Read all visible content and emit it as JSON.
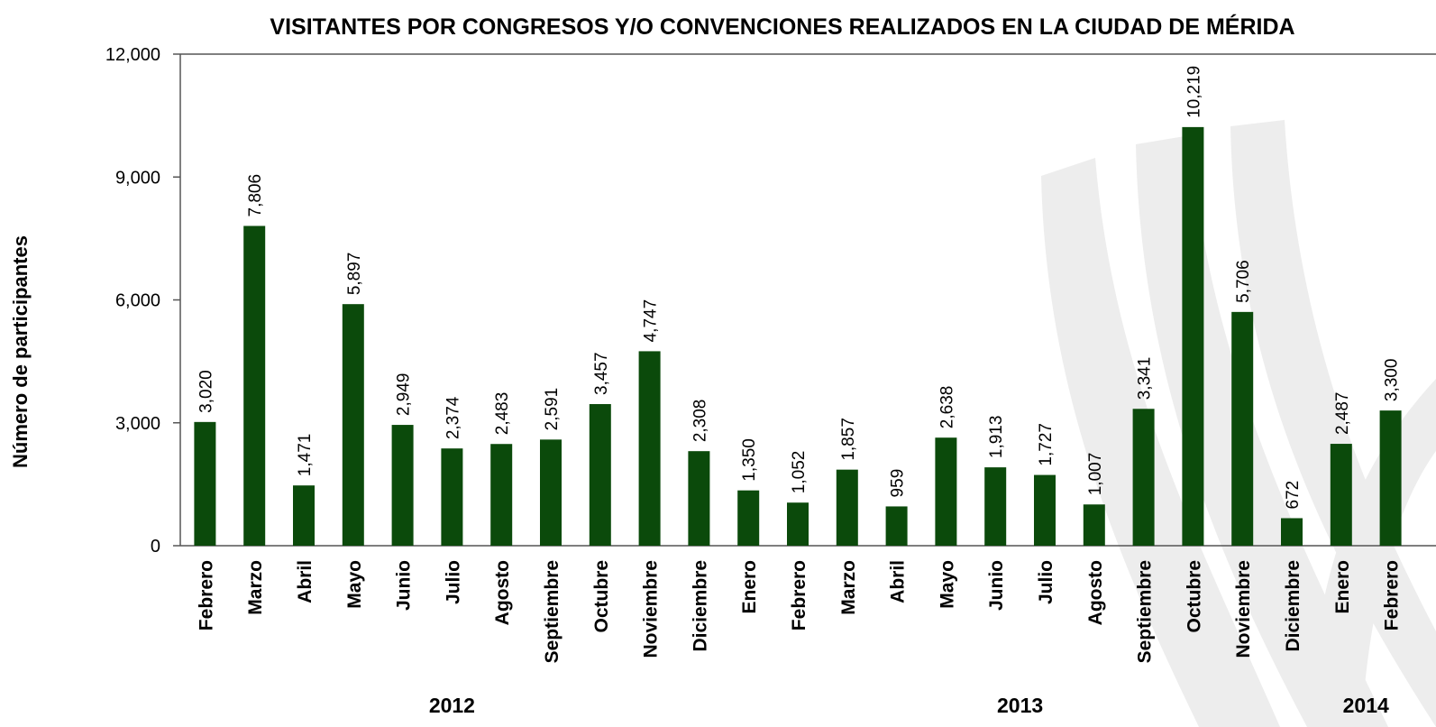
{
  "chart_data": {
    "type": "bar",
    "title": "VISITANTES POR CONGRESOS Y/O CONVENCIONES REALIZADOS EN LA CIUDAD DE MÉRIDA",
    "y_label": "Número de participantes",
    "color": "#0b4a0b",
    "ylim": [
      0,
      12000
    ],
    "yticks": [
      0,
      {
        "value": 3000,
        "label": "3,000"
      },
      {
        "value": 6000,
        "label": "6,000"
      },
      {
        "value": 9000,
        "label": "9,000"
      },
      {
        "value": 12000,
        "label": "12,000"
      }
    ],
    "groups": [
      {
        "label": "2012",
        "categories": [
          "Febrero",
          "Marzo",
          "Abril",
          "Mayo",
          "Junio",
          "Julio",
          "Agosto",
          "Septiembre",
          "Octubre",
          "Noviembre",
          "Diciembre"
        ],
        "values": [
          3020,
          7806,
          1471,
          5897,
          2949,
          2374,
          2483,
          2591,
          3457,
          4747,
          2308
        ],
        "value_labels": [
          "3,020",
          "7,806",
          "1,471",
          "5,897",
          "2,949",
          "2,374",
          "2,483",
          "2,591",
          "3,457",
          "4,747",
          "2,308"
        ]
      },
      {
        "label": "2013",
        "categories": [
          "Enero",
          "Febrero",
          "Marzo",
          "Abril",
          "Mayo",
          "Junio",
          "Julio",
          "Agosto",
          "Septiembre",
          "Octubre",
          "Noviembre",
          "Diciembre"
        ],
        "values": [
          1350,
          1052,
          1857,
          959,
          2638,
          1913,
          1727,
          1007,
          3341,
          10219,
          5706,
          672
        ],
        "value_labels": [
          "1,350",
          "1,052",
          "1,857",
          "959",
          "2,638",
          "1,913",
          "1,727",
          "1,007",
          "3,341",
          "10,219",
          "5,706",
          "672"
        ]
      },
      {
        "label": "2014",
        "categories": [
          "Enero",
          "Febrero"
        ],
        "values": [
          2487,
          3300
        ],
        "value_labels": [
          "2,487",
          "3,300"
        ]
      }
    ]
  }
}
